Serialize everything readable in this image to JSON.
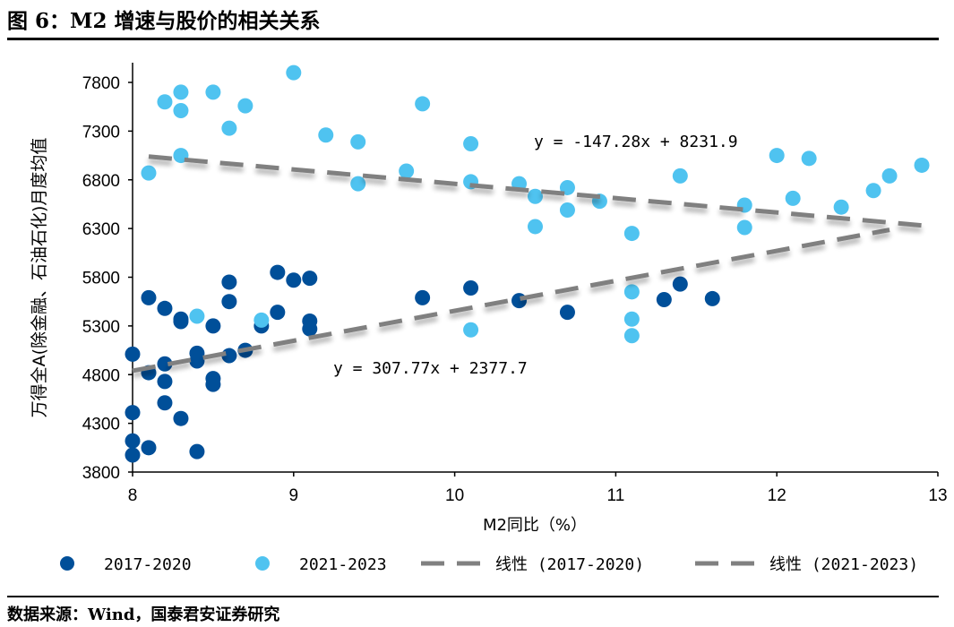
{
  "header": {
    "title": "图 6：M2 增速与股价的相关关系"
  },
  "footer": {
    "source": "数据来源：Wind，国泰君安证券研究"
  },
  "chart_data": {
    "type": "scatter",
    "title": "",
    "xlabel": "M2同比（%）",
    "ylabel": "万得全A(除金融、石油石化)月度均值",
    "xlim": [
      8,
      13
    ],
    "ylim": [
      3800,
      8000
    ],
    "xticks": [
      8,
      9,
      10,
      11,
      12,
      13
    ],
    "yticks": [
      3800,
      4300,
      4800,
      5300,
      5800,
      6300,
      6800,
      7300,
      7800
    ],
    "grid": false,
    "legend_position": "bottom",
    "series": [
      {
        "name": "2017-2020",
        "color": "#004f99",
        "points": [
          [
            8.0,
            5010
          ],
          [
            8.0,
            4410
          ],
          [
            8.0,
            4120
          ],
          [
            8.0,
            3975
          ],
          [
            8.1,
            5590
          ],
          [
            8.1,
            4820
          ],
          [
            8.1,
            4050
          ],
          [
            8.2,
            5480
          ],
          [
            8.2,
            4910
          ],
          [
            8.2,
            4730
          ],
          [
            8.2,
            4510
          ],
          [
            8.3,
            5370
          ],
          [
            8.3,
            5345
          ],
          [
            8.3,
            4350
          ],
          [
            8.4,
            5020
          ],
          [
            8.4,
            4940
          ],
          [
            8.4,
            4010
          ],
          [
            8.5,
            5300
          ],
          [
            8.5,
            4760
          ],
          [
            8.5,
            4700
          ],
          [
            8.6,
            5750
          ],
          [
            8.6,
            5550
          ],
          [
            8.6,
            4995
          ],
          [
            8.7,
            5050
          ],
          [
            8.8,
            5300
          ],
          [
            8.9,
            5850
          ],
          [
            8.9,
            5440
          ],
          [
            9.0,
            5770
          ],
          [
            9.1,
            5790
          ],
          [
            9.1,
            5350
          ],
          [
            9.1,
            5270
          ],
          [
            9.8,
            5590
          ],
          [
            10.1,
            5690
          ],
          [
            10.4,
            5560
          ],
          [
            10.7,
            5440
          ],
          [
            11.3,
            5570
          ],
          [
            11.4,
            5730
          ],
          [
            11.6,
            5580
          ]
        ]
      },
      {
        "name": "2021-2023",
        "color": "#4fc3f0",
        "points": [
          [
            8.1,
            6870
          ],
          [
            8.2,
            7600
          ],
          [
            8.3,
            7700
          ],
          [
            8.3,
            7510
          ],
          [
            8.3,
            7050
          ],
          [
            8.4,
            5400
          ],
          [
            8.5,
            7700
          ],
          [
            8.6,
            7330
          ],
          [
            8.7,
            7560
          ],
          [
            8.8,
            5360
          ],
          [
            9.0,
            7900
          ],
          [
            9.2,
            7260
          ],
          [
            9.4,
            7190
          ],
          [
            9.4,
            6760
          ],
          [
            9.7,
            6890
          ],
          [
            9.8,
            7580
          ],
          [
            10.1,
            7170
          ],
          [
            10.1,
            6780
          ],
          [
            10.1,
            5260
          ],
          [
            10.4,
            6760
          ],
          [
            10.5,
            6630
          ],
          [
            10.5,
            6320
          ],
          [
            10.7,
            6720
          ],
          [
            10.7,
            6490
          ],
          [
            10.9,
            6580
          ],
          [
            11.1,
            6250
          ],
          [
            11.1,
            5650
          ],
          [
            11.1,
            5370
          ],
          [
            11.1,
            5200
          ],
          [
            11.4,
            6840
          ],
          [
            11.8,
            6540
          ],
          [
            11.8,
            6310
          ],
          [
            12.0,
            7050
          ],
          [
            12.1,
            6610
          ],
          [
            12.2,
            7020
          ],
          [
            12.4,
            6520
          ],
          [
            12.6,
            6690
          ],
          [
            12.7,
            6840
          ],
          [
            12.9,
            6950
          ]
        ]
      }
    ],
    "trendlines": [
      {
        "name": "线性 (2017-2020)",
        "slope": 307.77,
        "intercept": 2377.7,
        "x_range": [
          8,
          12.7
        ],
        "equation": "y = 307.77x + 2377.7",
        "color": "#808080"
      },
      {
        "name": "线性 (2021-2023)",
        "slope": -147.28,
        "intercept": 8231.9,
        "x_range": [
          8.1,
          12.9
        ],
        "equation": "y = -147.28x + 8231.9",
        "color": "#808080"
      }
    ]
  }
}
